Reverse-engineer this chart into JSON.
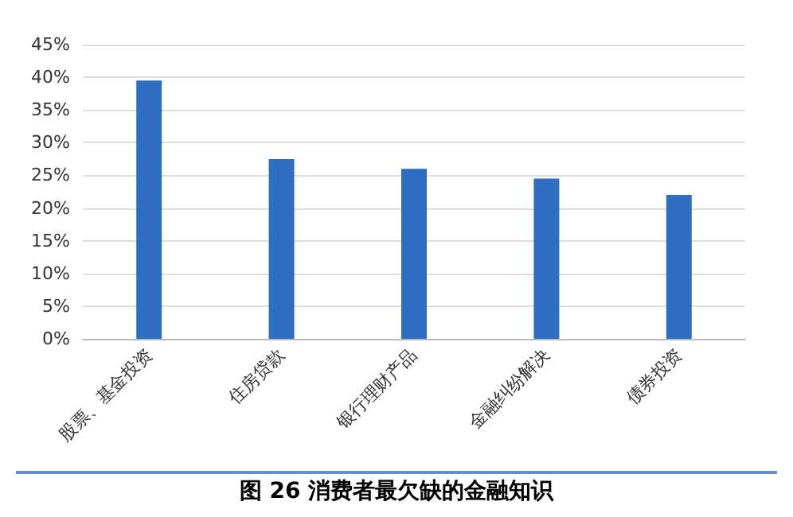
{
  "chart_data": {
    "type": "bar",
    "title": "图 26 消费者最欠缺的金融知识",
    "categories": [
      "股票、基金投资",
      "住房贷款",
      "银行理财产品",
      "金融纠纷解决",
      "债券投资"
    ],
    "values": [
      39.5,
      27.5,
      26,
      24.5,
      22
    ],
    "color": "#2e6fc4",
    "ylim": [
      0,
      45
    ],
    "yticks": [
      {
        "value": 0,
        "label": "0%"
      },
      {
        "value": 5,
        "label": "5%"
      },
      {
        "value": 10,
        "label": "10%"
      },
      {
        "value": 15,
        "label": "15%"
      },
      {
        "value": 20,
        "label": "20%"
      },
      {
        "value": 25,
        "label": "25%"
      },
      {
        "value": 30,
        "label": "30%"
      },
      {
        "value": 35,
        "label": "35%"
      },
      {
        "value": 40,
        "label": "40%"
      },
      {
        "value": 45,
        "label": "45%"
      }
    ],
    "grid": true
  }
}
